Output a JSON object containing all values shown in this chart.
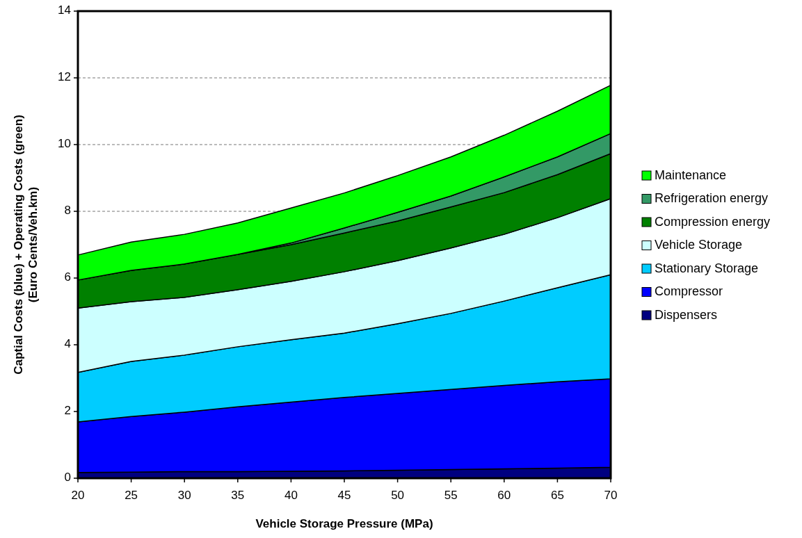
{
  "chart_data": {
    "type": "area",
    "stacked": true,
    "xlabel": "Vehicle Storage Pressure (MPa)",
    "ylabel": "Captial Costs (blue) + Operating Costs (green)\n(Euro Cents/Veh.km)",
    "x": [
      20,
      25,
      30,
      35,
      40,
      45,
      50,
      55,
      60,
      65,
      70
    ],
    "xlim": [
      20,
      70
    ],
    "xticks": [
      20,
      25,
      30,
      35,
      40,
      45,
      50,
      55,
      60,
      65,
      70
    ],
    "ylim": [
      0,
      14
    ],
    "yticks": [
      0,
      2,
      4,
      6,
      8,
      10,
      12,
      14
    ],
    "grid": "y",
    "legend": "right",
    "series": [
      {
        "name": "Dispensers",
        "color": "#000080",
        "values": [
          0.17,
          0.18,
          0.2,
          0.2,
          0.21,
          0.22,
          0.24,
          0.26,
          0.28,
          0.3,
          0.33
        ]
      },
      {
        "name": "Compressor",
        "color": "#0000ff",
        "values": [
          1.52,
          1.67,
          1.78,
          1.94,
          2.07,
          2.2,
          2.3,
          2.4,
          2.5,
          2.59,
          2.65
        ]
      },
      {
        "name": "Stationary Storage",
        "color": "#00ccff",
        "values": [
          1.48,
          1.65,
          1.71,
          1.8,
          1.87,
          1.93,
          2.09,
          2.28,
          2.53,
          2.82,
          3.12
        ]
      },
      {
        "name": "Vehicle Storage",
        "color": "#ccffff",
        "values": [
          1.93,
          1.79,
          1.73,
          1.71,
          1.75,
          1.84,
          1.89,
          1.96,
          2.0,
          2.1,
          2.28
        ]
      },
      {
        "name": "Compression energy",
        "color": "#008000",
        "values": [
          0.84,
          0.94,
          1.0,
          1.06,
          1.1,
          1.16,
          1.19,
          1.23,
          1.25,
          1.29,
          1.35
        ]
      },
      {
        "name": "Refrigeration energy",
        "color": "#339966",
        "values": [
          0,
          0,
          0,
          0,
          0.05,
          0.15,
          0.26,
          0.33,
          0.47,
          0.53,
          0.6
        ]
      },
      {
        "name": "Maintenance",
        "color": "#00ff00",
        "values": [
          0.75,
          0.85,
          0.89,
          0.94,
          1.05,
          1.05,
          1.1,
          1.17,
          1.25,
          1.37,
          1.45
        ]
      }
    ]
  }
}
